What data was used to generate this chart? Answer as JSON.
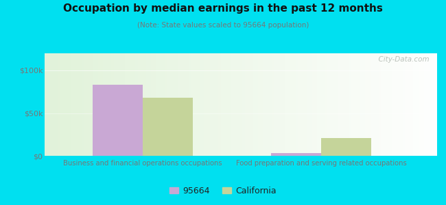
{
  "title": "Occupation by median earnings in the past 12 months",
  "subtitle": "(Note: State values scaled to 95664 population)",
  "categories": [
    "Business and financial operations occupations",
    "Food preparation and serving related occupations"
  ],
  "series": {
    "95664": [
      83000,
      3500
    ],
    "California": [
      68000,
      21000
    ]
  },
  "bar_colors": {
    "95664": "#c9a8d4",
    "California": "#c5d49a"
  },
  "legend_labels": [
    "95664",
    "California"
  ],
  "yticks": [
    0,
    50000,
    100000
  ],
  "ytick_labels": [
    "$0",
    "$50k",
    "$100k"
  ],
  "ylim": [
    0,
    120000
  ],
  "background_outer": "#00e0f0",
  "watermark": "  City-Data.com",
  "bar_width": 0.28
}
